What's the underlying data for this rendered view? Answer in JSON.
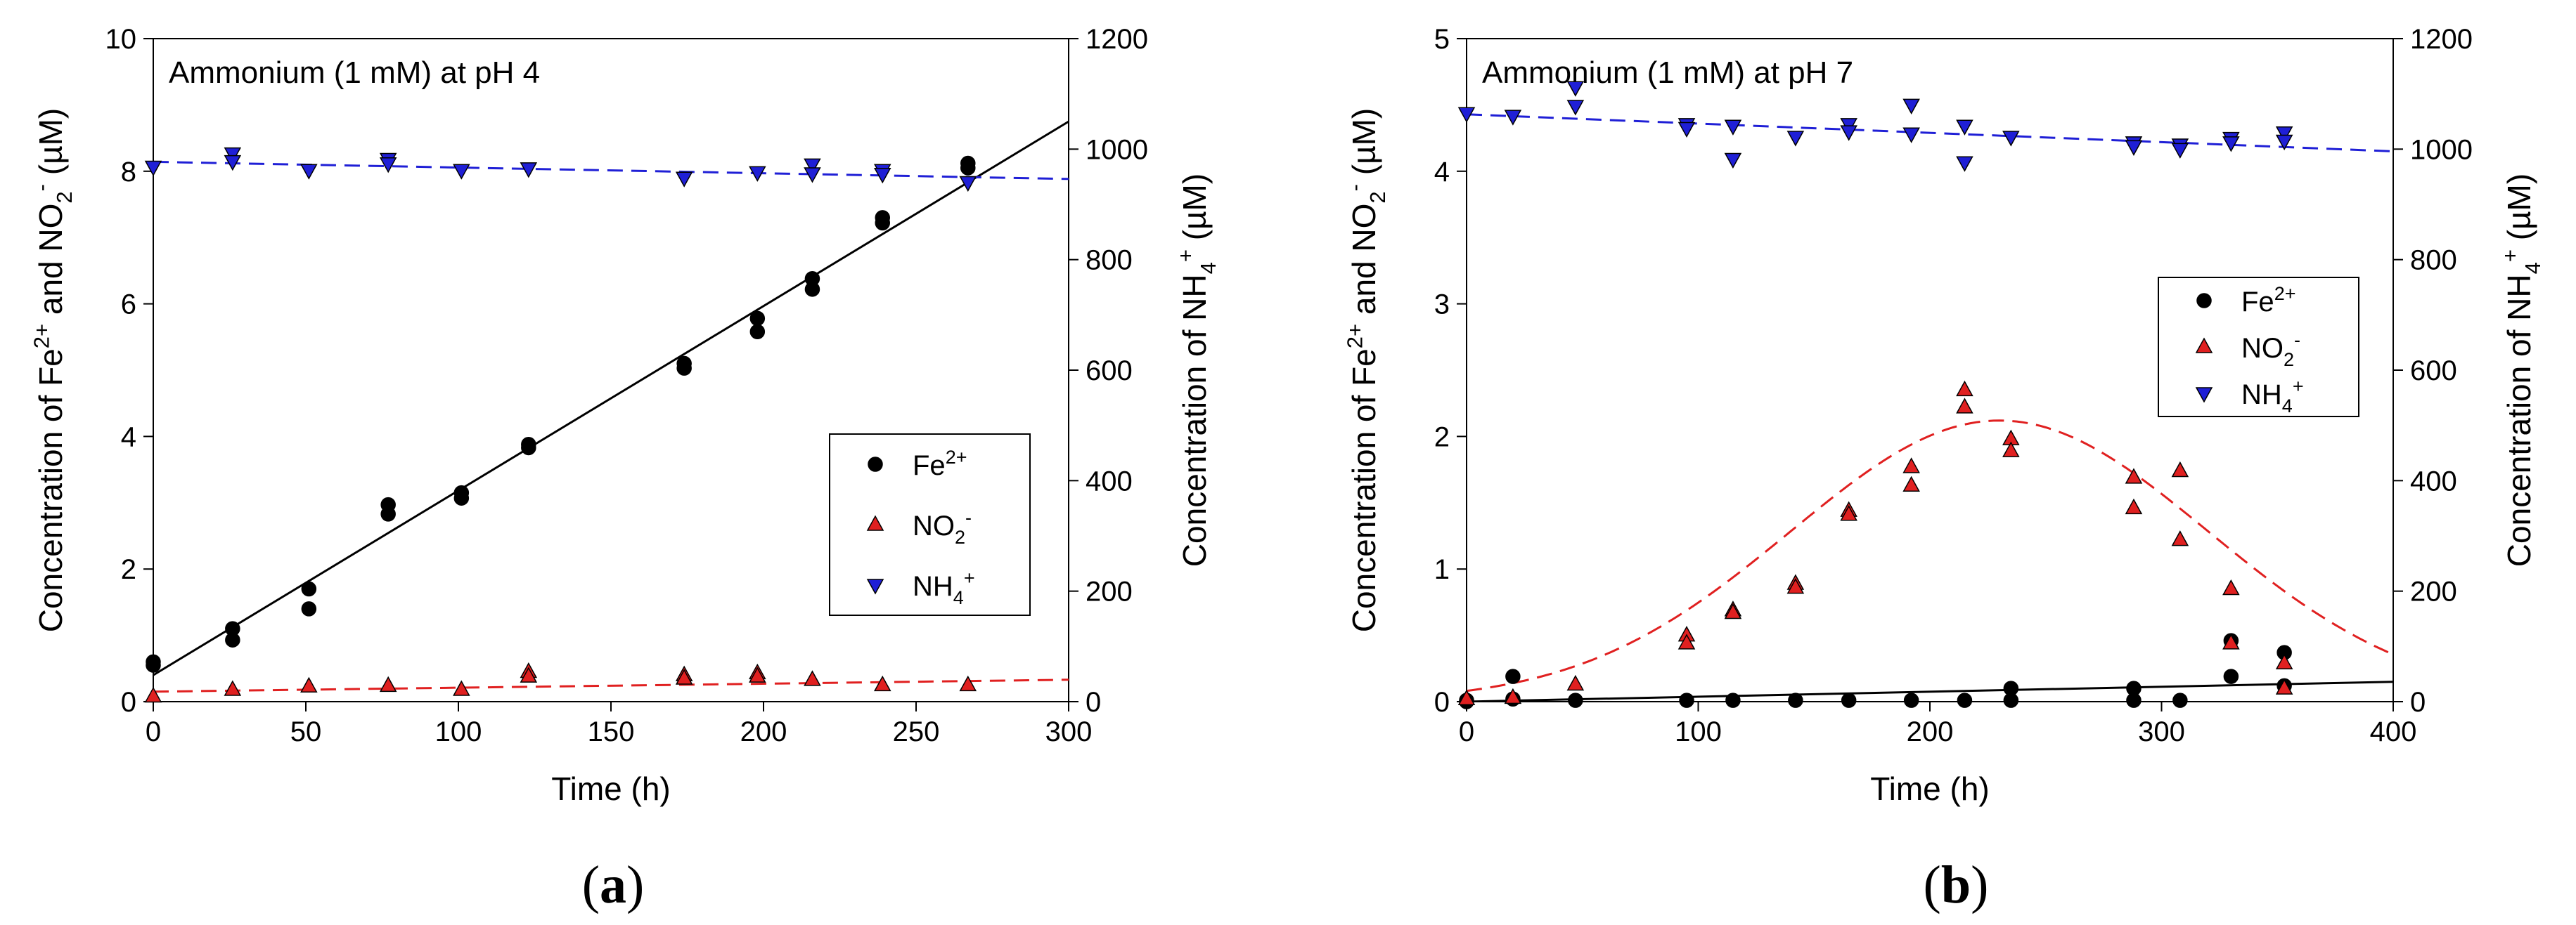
{
  "chart_data": [
    {
      "id": "a",
      "type": "scatter",
      "panel_label": "a",
      "title": "Ammonium (1 mM) at pH 4",
      "xlabel": "Time (h)",
      "ylabel_left": "Concentration of Fe2+ and NO2- (µM)",
      "ylabel_right": "Concentration of NH4+ (µM)",
      "xlim": [
        0,
        300
      ],
      "ylim_left": [
        0,
        10
      ],
      "ylim_right": [
        0,
        1200
      ],
      "xticks": [
        0,
        50,
        100,
        150,
        200,
        250,
        300
      ],
      "yticks_left": [
        0,
        2,
        4,
        6,
        8,
        10
      ],
      "yticks_right": [
        0,
        200,
        400,
        600,
        800,
        1000,
        1200
      ],
      "legend_position": "center-right",
      "series": [
        {
          "name": "Fe2+",
          "axis": "left",
          "marker": "circle",
          "color": "#000000",
          "points": [
            [
              0,
              0.6
            ],
            [
              0,
              0.55
            ],
            [
              26,
              1.1
            ],
            [
              26,
              0.93
            ],
            [
              51,
              1.7
            ],
            [
              51,
              1.4
            ],
            [
              77,
              2.97
            ],
            [
              77,
              2.83
            ],
            [
              101,
              3.15
            ],
            [
              101,
              3.07
            ],
            [
              123,
              3.88
            ],
            [
              123,
              3.83
            ],
            [
              174,
              5.1
            ],
            [
              174,
              5.03
            ],
            [
              198,
              5.78
            ],
            [
              198,
              5.58
            ],
            [
              216,
              6.38
            ],
            [
              216,
              6.22
            ],
            [
              239,
              7.3
            ],
            [
              239,
              7.22
            ],
            [
              267,
              8.12
            ],
            [
              267,
              8.05
            ]
          ]
        },
        {
          "name": "NO2-",
          "axis": "left",
          "marker": "triangle-up",
          "color": "#e02020",
          "points": [
            [
              0,
              0.08
            ],
            [
              26,
              0.18
            ],
            [
              51,
              0.23
            ],
            [
              77,
              0.24
            ],
            [
              101,
              0.18
            ],
            [
              123,
              0.45
            ],
            [
              123,
              0.38
            ],
            [
              174,
              0.4
            ],
            [
              174,
              0.35
            ],
            [
              198,
              0.43
            ],
            [
              198,
              0.38
            ],
            [
              216,
              0.33
            ],
            [
              239,
              0.25
            ],
            [
              267,
              0.25
            ]
          ]
        },
        {
          "name": "NH4+",
          "axis": "right",
          "marker": "triangle-down",
          "color": "#1f1fd6",
          "points": [
            [
              0,
              968
            ],
            [
              26,
              992
            ],
            [
              26,
              978
            ],
            [
              51,
              962
            ],
            [
              77,
              982
            ],
            [
              77,
              974
            ],
            [
              101,
              962
            ],
            [
              123,
              965
            ],
            [
              174,
              948
            ],
            [
              198,
              958
            ],
            [
              216,
              972
            ],
            [
              216,
              956
            ],
            [
              239,
              962
            ],
            [
              239,
              955
            ],
            [
              267,
              940
            ]
          ]
        }
      ],
      "fits": [
        {
          "series": "Fe2+",
          "style": "solid",
          "color": "#000000",
          "axis": "left",
          "points": [
            [
              0,
              0.4
            ],
            [
              300,
              8.75
            ]
          ]
        },
        {
          "series": "NO2-",
          "style": "dashed",
          "color": "#e02020",
          "axis": "left",
          "points": [
            [
              0,
              0.15
            ],
            [
              300,
              0.33
            ]
          ]
        },
        {
          "series": "NH4+",
          "style": "dashed",
          "color": "#1f1fd6",
          "axis": "right",
          "points": [
            [
              0,
              977
            ],
            [
              300,
              946
            ]
          ]
        }
      ]
    },
    {
      "id": "b",
      "type": "scatter",
      "panel_label": "b",
      "title": "Ammonium (1 mM) at pH 7",
      "xlabel": "Time (h)",
      "ylabel_left": "Concentration of Fe2+ and NO2- (µM)",
      "ylabel_right": "Concentration of NH4+ (µM)",
      "xlim": [
        0,
        400
      ],
      "ylim_left": [
        0,
        5
      ],
      "ylim_right": [
        0,
        1200
      ],
      "xticks": [
        0,
        100,
        200,
        300,
        400
      ],
      "yticks_left": [
        0,
        1,
        2,
        3,
        4,
        5
      ],
      "yticks_right": [
        0,
        200,
        400,
        600,
        800,
        1000,
        1200
      ],
      "legend_position": "top-right",
      "series": [
        {
          "name": "Fe2+",
          "axis": "left",
          "marker": "circle",
          "color": "#000000",
          "points": [
            [
              0,
              0.01
            ],
            [
              0,
              0
            ],
            [
              20,
              0.19
            ],
            [
              20,
              0.02
            ],
            [
              47,
              0.01
            ],
            [
              95,
              0.01
            ],
            [
              115,
              0.01
            ],
            [
              142,
              0.01
            ],
            [
              165,
              0.01
            ],
            [
              192,
              0.01
            ],
            [
              215,
              0.01
            ],
            [
              235,
              0.1
            ],
            [
              235,
              0.01
            ],
            [
              288,
              0.1
            ],
            [
              288,
              0.01
            ],
            [
              308,
              0.01
            ],
            [
              330,
              0.46
            ],
            [
              330,
              0.19
            ],
            [
              353,
              0.37
            ],
            [
              353,
              0.12
            ]
          ]
        },
        {
          "name": "NO2-",
          "axis": "left",
          "marker": "triangle-up",
          "color": "#e02020",
          "points": [
            [
              0,
              0.02
            ],
            [
              20,
              0.03
            ],
            [
              47,
              0.13
            ],
            [
              95,
              0.5
            ],
            [
              95,
              0.44
            ],
            [
              115,
              0.69
            ],
            [
              115,
              0.67
            ],
            [
              142,
              0.89
            ],
            [
              142,
              0.86
            ],
            [
              165,
              1.44
            ],
            [
              165,
              1.41
            ],
            [
              192,
              1.77
            ],
            [
              192,
              1.63
            ],
            [
              215,
              2.35
            ],
            [
              215,
              2.22
            ],
            [
              235,
              1.98
            ],
            [
              235,
              1.89
            ],
            [
              288,
              1.69
            ],
            [
              288,
              1.46
            ],
            [
              308,
              1.74
            ],
            [
              308,
              1.22
            ],
            [
              330,
              0.85
            ],
            [
              330,
              0.44
            ],
            [
              353,
              0.29
            ],
            [
              353,
              0.1
            ]
          ]
        },
        {
          "name": "NH4+",
          "axis": "right",
          "marker": "triangle-down",
          "color": "#1f1fd6",
          "points": [
            [
              0,
              1065
            ],
            [
              20,
              1060
            ],
            [
              47,
              1112
            ],
            [
              47,
              1078
            ],
            [
              95,
              1045
            ],
            [
              95,
              1038
            ],
            [
              115,
              1042
            ],
            [
              115,
              982
            ],
            [
              142,
              1022
            ],
            [
              165,
              1045
            ],
            [
              165,
              1032
            ],
            [
              192,
              1080
            ],
            [
              192,
              1028
            ],
            [
              215,
              1042
            ],
            [
              215,
              976
            ],
            [
              235,
              1022
            ],
            [
              288,
              1012
            ],
            [
              288,
              1005
            ],
            [
              308,
              1008
            ],
            [
              308,
              1000
            ],
            [
              330,
              1020
            ],
            [
              330,
              1012
            ],
            [
              353,
              1030
            ],
            [
              353,
              1015
            ]
          ]
        }
      ],
      "fits": [
        {
          "series": "Fe2+",
          "style": "solid",
          "color": "#000000",
          "axis": "left",
          "points": [
            [
              0,
              0
            ],
            [
              400,
              0.15
            ]
          ]
        },
        {
          "series": "NO2-",
          "style": "dashed",
          "color": "#e02020",
          "axis": "left",
          "model": "gaussian",
          "params": {
            "a": 2.12,
            "x0": 230,
            "b": 90
          }
        },
        {
          "series": "NH4+",
          "style": "dashed",
          "color": "#1f1fd6",
          "axis": "right",
          "points": [
            [
              0,
              1063
            ],
            [
              400,
              996
            ]
          ]
        }
      ]
    }
  ]
}
